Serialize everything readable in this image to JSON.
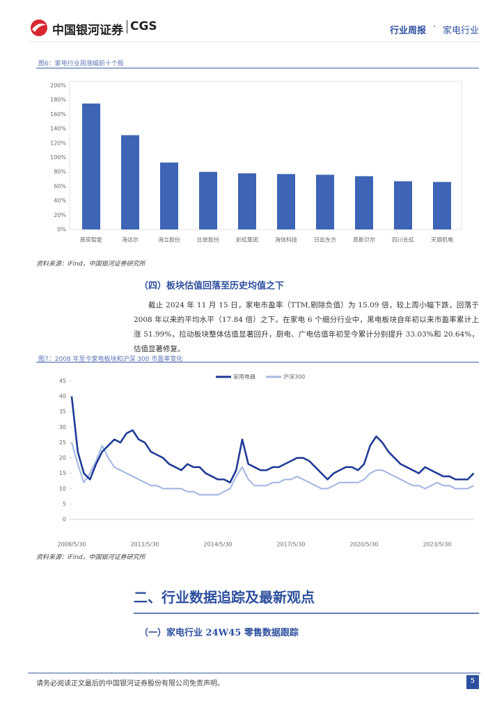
{
  "header": {
    "brand": "中国银河证券",
    "brand_en": "CGS",
    "report_type": "行业周报",
    "sector": "家电行业"
  },
  "figure_sources": [
    "资料来源：iFind，中国银河证券研究所",
    "资料来源：iFind，中国银河证券研究所"
  ],
  "section_4": {
    "title": "（四）板块估值回落至历史均值之下",
    "paragraph": "截止 2024 年 11 月 15 日，家电市盈率（TTM,剔除负值）为 15.09 倍，较上周小幅下跌，回落于 2008 年以来的平均水平（17.84 倍）之下。在家电 6 个细分行业中，黑电板块自年初以来市盈率累计上涨 51.99%，拉动板块整体估值显著回升，厨电、广电估值年初至今累计分别提升 33.03%和 20.64%，估值显著修复。"
  },
  "chapter_2": {
    "title": "二、行业数据追踪及最新观点",
    "subtitle": "（一）家电行业 24W45 零售数据跟踪"
  },
  "footer": {
    "disclaimer": "请务必阅读正文最后的中国银河证券股份有限公司免责声明。",
    "page": "5"
  },
  "chart_data": [
    {
      "type": "bar",
      "title": "图6：家电行业周涨幅前十个股",
      "categories": [
        "辰奕智能",
        "海达尔",
        "海立股份",
        "比依股份",
        "彩虹集团",
        "海信科技",
        "日出东方",
        "高斯贝尔",
        "四川长虹",
        "天银机电"
      ],
      "values": [
        175,
        131,
        93,
        80,
        78,
        77,
        76,
        74,
        67,
        66
      ],
      "color": "#3d64b5",
      "ylim": [
        0,
        200
      ],
      "yticks": [
        {
          "value": 0,
          "label": "0%"
        },
        {
          "value": 20,
          "label": "20%"
        },
        {
          "value": 40,
          "label": "40%"
        },
        {
          "value": 60,
          "label": "60%"
        },
        {
          "value": 80,
          "label": "80%"
        },
        {
          "value": 100,
          "label": "100%"
        },
        {
          "value": 120,
          "label": "120%"
        },
        {
          "value": 140,
          "label": "140%"
        },
        {
          "value": 160,
          "label": "160%"
        },
        {
          "value": 180,
          "label": "180%"
        },
        {
          "value": 200,
          "label": "200%"
        }
      ]
    },
    {
      "type": "line",
      "title": "图7：2008 年至今家电板块和沪深 300 市盈率变化",
      "categories": [
        "2008/5/30",
        null,
        null,
        null,
        null,
        null,
        null,
        null,
        null,
        null,
        null,
        null,
        "2011/5/30",
        null,
        null,
        null,
        null,
        null,
        null,
        null,
        null,
        null,
        null,
        null,
        "2014/5/30",
        null,
        null,
        null,
        null,
        null,
        null,
        null,
        null,
        null,
        null,
        null,
        "2017/5/30",
        null,
        null,
        null,
        null,
        null,
        null,
        null,
        null,
        null,
        null,
        null,
        "2020/5/30",
        null,
        null,
        null,
        null,
        null,
        null,
        null,
        null,
        null,
        null,
        null,
        "2023/5/30",
        null,
        null,
        null,
        null,
        null,
        null
      ],
      "series": [
        {
          "name": "家用电器",
          "color": "#1f3a96",
          "values": [
            40,
            22,
            15,
            13,
            18,
            22,
            24,
            26,
            25,
            28,
            29,
            26,
            25,
            22,
            21,
            20,
            18,
            17,
            16,
            18,
            17,
            17,
            15,
            14,
            13,
            13,
            12,
            16,
            26,
            18,
            17,
            16,
            16,
            17,
            17,
            18,
            19,
            20,
            20,
            19,
            17,
            15,
            13,
            15,
            16,
            17,
            17,
            16,
            18,
            24,
            27,
            25,
            22,
            20,
            18,
            17,
            16,
            15,
            17,
            16,
            15,
            14,
            14,
            13,
            13,
            13,
            15
          ]
        },
        {
          "name": "沪深300",
          "color": "#a7b9e3",
          "values": [
            25,
            18,
            12,
            15,
            19,
            24,
            20,
            17,
            16,
            15,
            14,
            13,
            12,
            11,
            11,
            10,
            10,
            10,
            10,
            9,
            9,
            8,
            8,
            8,
            8,
            9,
            10,
            14,
            17,
            13,
            11,
            11,
            11,
            12,
            12,
            13,
            13,
            14,
            13,
            12,
            11,
            10,
            10,
            11,
            12,
            12,
            12,
            12,
            13,
            15,
            16,
            16,
            15,
            14,
            13,
            12,
            11,
            11,
            10,
            11,
            12,
            11,
            11,
            10,
            10,
            10,
            11
          ]
        }
      ],
      "ylim": [
        0,
        45
      ],
      "yticks": [
        0,
        5,
        10,
        15,
        20,
        25,
        30,
        35,
        40,
        45
      ]
    }
  ]
}
